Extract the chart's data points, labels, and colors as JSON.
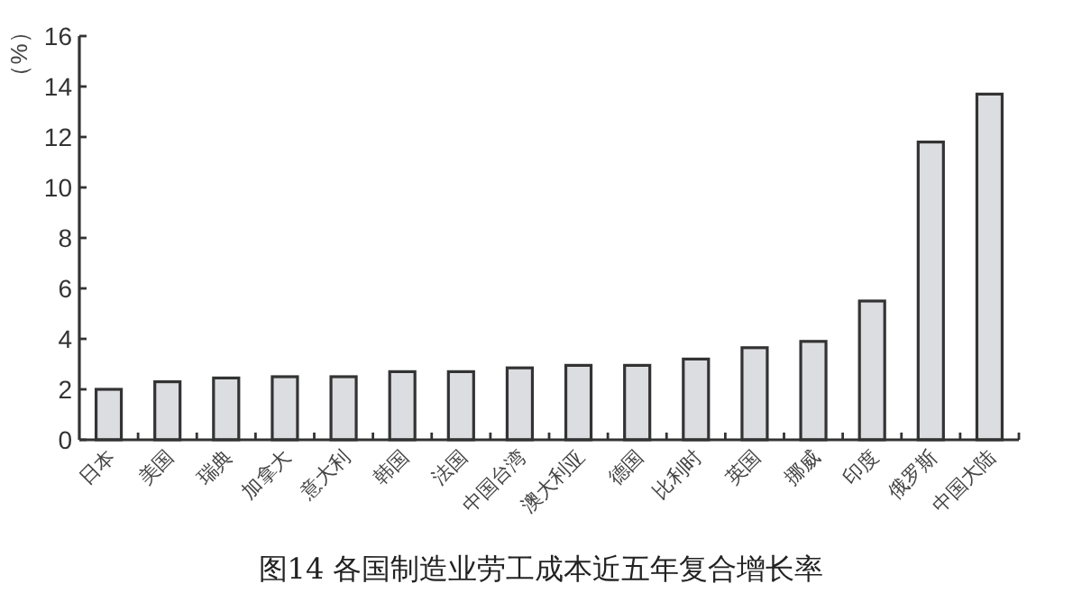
{
  "chart_data": {
    "type": "bar",
    "title": "图14 各国制造业劳工成本近五年复合增长率",
    "ylabel": "（%）",
    "categories": [
      "日本",
      "美国",
      "瑞典",
      "加拿大",
      "意大利",
      "韩国",
      "法国",
      "中国台湾",
      "澳大利亚",
      "德国",
      "比利时",
      "英国",
      "挪威",
      "印度",
      "俄罗斯",
      "中国大陆"
    ],
    "values": [
      2.0,
      2.3,
      2.45,
      2.5,
      2.5,
      2.7,
      2.7,
      2.85,
      2.95,
      2.95,
      3.2,
      3.65,
      3.9,
      5.5,
      11.8,
      13.7
    ],
    "color": "#dcdde0",
    "ylim": [
      0,
      16
    ],
    "yticks": [
      0,
      2,
      4,
      6,
      8,
      10,
      12,
      14,
      16
    ],
    "grid": false
  }
}
